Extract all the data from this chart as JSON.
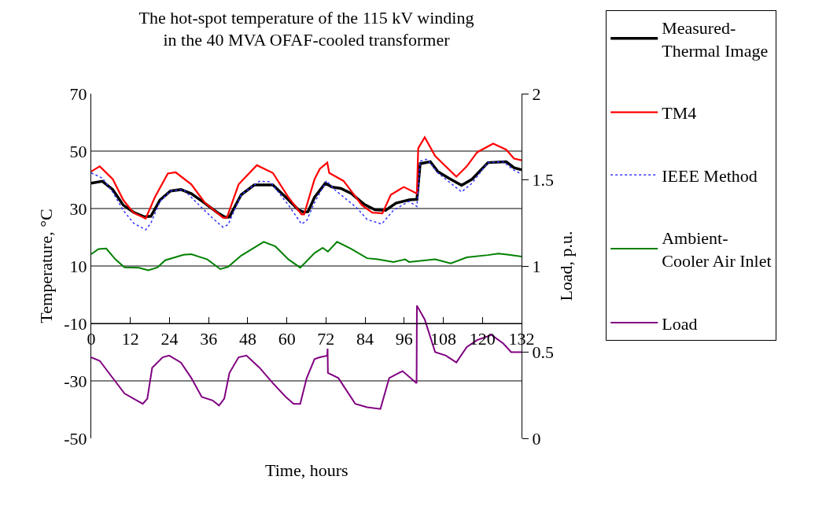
{
  "chart_data": {
    "type": "line",
    "title": "The hot-spot temperature of the 115 kV winding\nin the 40 MVA OFAF-cooled transformer",
    "xlabel": "Time, hours",
    "ylabel": "Temperature, °C",
    "y2label": "Load, p.u.",
    "xlim": [
      0,
      132
    ],
    "xticks": [
      0,
      12,
      24,
      36,
      48,
      60,
      72,
      84,
      96,
      108,
      120,
      132
    ],
    "ylim": [
      -50,
      70
    ],
    "yticks": [
      -50,
      -30,
      -10,
      10,
      30,
      50,
      70
    ],
    "y2lim": [
      0,
      2
    ],
    "y2ticks": [
      0,
      0.5,
      1,
      1.5,
      2
    ],
    "grid": "y",
    "legend": "right",
    "marker": "none",
    "series": [
      {
        "name": "Measured-Thermal Image",
        "color": "#000000",
        "line_style": "solid",
        "x": [
          0,
          3.4,
          6.6,
          9.8,
          13.0,
          16.3,
          18.3,
          21.1,
          24.3,
          27.5,
          30.7,
          34.8,
          38.8,
          41.2,
          42.4,
          46.0,
          50.0,
          55.7,
          59.7,
          63.7,
          65.3,
          66.5,
          68.5,
          71.8,
          73.8,
          76.6,
          79.8,
          83.8,
          87.0,
          90.3,
          93.5,
          97.5,
          99.9,
          100.9,
          104.0,
          106.3,
          109.6,
          113.6,
          116.8,
          121.7,
          127.3,
          129.7,
          132
        ],
        "values": [
          38.8,
          39.5,
          36.6,
          31.2,
          28.7,
          27.1,
          27.3,
          33.0,
          36.1,
          36.6,
          35.2,
          31.9,
          28.5,
          26.9,
          27.1,
          34.8,
          38.2,
          38.2,
          33.9,
          29.4,
          28.7,
          28.9,
          33.9,
          38.8,
          37.5,
          37.0,
          35.2,
          31.4,
          29.6,
          29.4,
          31.9,
          33.0,
          33.2,
          45.6,
          46.3,
          42.9,
          40.6,
          38.1,
          40.2,
          46.0,
          46.3,
          44.2,
          43.5
        ]
      },
      {
        "name": "TM4",
        "color": "#ff0000",
        "line_style": "solid",
        "x": [
          0,
          2.6,
          6.6,
          9.8,
          13.0,
          16.7,
          19.5,
          23.5,
          25.9,
          30.7,
          34.8,
          40.4,
          41.6,
          45.2,
          50.8,
          55.7,
          60.5,
          64.5,
          65.3,
          68.5,
          70.1,
          72.4,
          73.0,
          77.4,
          83.0,
          86.2,
          89.3,
          91.9,
          95.9,
          99.9,
          100.3,
          102.3,
          105.5,
          112.0,
          115.2,
          118.4,
          123.3,
          127.3,
          129.7,
          132
        ],
        "values": [
          42.9,
          44.7,
          40.2,
          33.0,
          28.5,
          26.5,
          33.9,
          42.2,
          42.6,
          38.4,
          32.1,
          26.8,
          26.8,
          38.4,
          45.1,
          42.4,
          33.9,
          28.0,
          28.0,
          40.2,
          43.8,
          46.0,
          42.4,
          39.6,
          31.2,
          28.6,
          28.3,
          34.8,
          37.5,
          35.2,
          51.0,
          54.8,
          48.3,
          41.1,
          44.7,
          49.6,
          52.6,
          50.5,
          47.4,
          46.8
        ]
      },
      {
        "name": "IEEE Method",
        "color": "#3333ff",
        "line_style": "dotted",
        "x": [
          0,
          3.4,
          6.6,
          9.8,
          13.0,
          16.7,
          18.3,
          21.1,
          24.3,
          28.3,
          33.1,
          37.2,
          40.4,
          42.0,
          46.0,
          51.6,
          54.9,
          60.5,
          64.5,
          66.1,
          68.5,
          72.2,
          74.2,
          81.4,
          84.6,
          89.1,
          92.7,
          97.5,
          99.9,
          100.9,
          103.1,
          106.3,
          113.6,
          116.8,
          121.7,
          126.4,
          129.7,
          132
        ],
        "values": [
          42.4,
          40.6,
          35.7,
          29.4,
          24.9,
          22.6,
          24.9,
          32.5,
          36.1,
          36.6,
          31.2,
          26.7,
          23.5,
          24.4,
          34.8,
          39.5,
          39.3,
          31.2,
          24.6,
          25.8,
          32.1,
          39.7,
          37.0,
          30.3,
          26.2,
          24.6,
          29.4,
          32.5,
          30.7,
          46.5,
          47.2,
          42.4,
          35.8,
          38.8,
          46.0,
          46.3,
          43.3,
          42.0
        ]
      },
      {
        "name": "Ambient-Cooler Air Inlet",
        "color": "#008000",
        "line_style": "solid",
        "x": [
          0,
          2.2,
          4.6,
          7.4,
          10.2,
          14.6,
          17.5,
          20.3,
          22.7,
          28.3,
          30.7,
          35.6,
          39.6,
          42.0,
          46.0,
          52.9,
          56.5,
          60.5,
          64.1,
          68.5,
          71.0,
          72.6,
          75.4,
          79.8,
          84.6,
          87.9,
          92.7,
          96.3,
          97.5,
          105.5,
          110.3,
          115.2,
          121.7,
          124.9,
          128.1,
          132
        ],
        "values": [
          14.1,
          15.9,
          16.1,
          12.3,
          9.5,
          9.4,
          8.5,
          9.5,
          12.0,
          13.9,
          14.1,
          12.3,
          8.9,
          9.7,
          13.6,
          18.4,
          16.8,
          12.3,
          9.4,
          14.5,
          16.3,
          15.0,
          18.4,
          15.9,
          12.7,
          12.3,
          11.4,
          12.3,
          11.4,
          12.3,
          10.9,
          13.0,
          13.8,
          14.3,
          13.9,
          13.3
        ]
      },
      {
        "name": "Load",
        "color": "#800080",
        "line_style": "solid",
        "axis": "y2",
        "x": [
          0,
          2.6,
          7.4,
          10.2,
          13.0,
          15.8,
          17.2,
          18.7,
          21.9,
          23.9,
          27.5,
          30.7,
          33.9,
          37.2,
          39.2,
          40.8,
          42.4,
          45.2,
          47.6,
          51.6,
          55.7,
          59.7,
          62.1,
          64.1,
          66.1,
          68.5,
          70.1,
          72.4,
          72.5,
          72.6,
          75.8,
          81.0,
          84.6,
          88.7,
          91.4,
          95.5,
          99.8,
          99.9,
          102.3,
          105.5,
          108.8,
          112.0,
          115.2,
          118.4,
          122.8,
          126.4,
          128.8,
          132
        ],
        "values": [
          0.47,
          0.45,
          0.33,
          0.26,
          0.23,
          0.2,
          0.23,
          0.41,
          0.47,
          0.48,
          0.44,
          0.35,
          0.24,
          0.22,
          0.19,
          0.23,
          0.38,
          0.47,
          0.48,
          0.41,
          0.32,
          0.24,
          0.2,
          0.2,
          0.35,
          0.46,
          0.47,
          0.48,
          0.52,
          0.38,
          0.35,
          0.2,
          0.18,
          0.17,
          0.35,
          0.39,
          0.32,
          0.77,
          0.69,
          0.5,
          0.48,
          0.44,
          0.53,
          0.57,
          0.6,
          0.55,
          0.5,
          0.5
        ]
      }
    ]
  }
}
